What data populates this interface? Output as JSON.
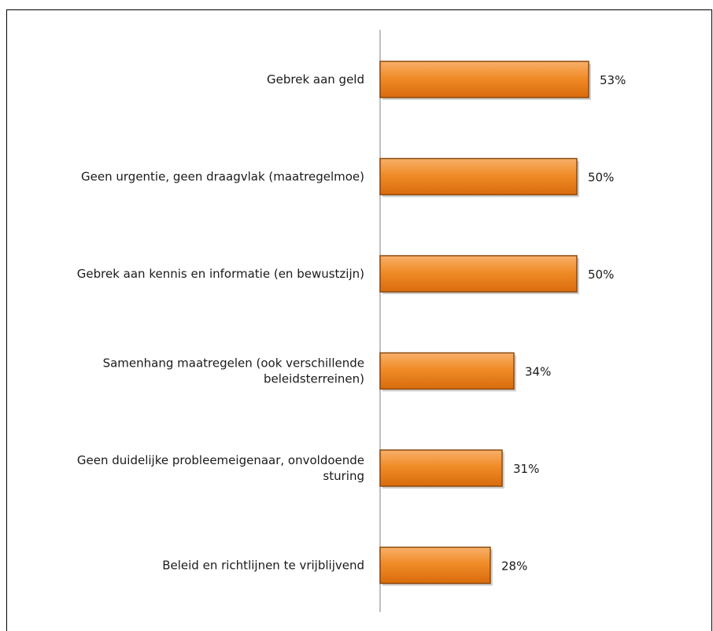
{
  "chart_data": {
    "type": "bar",
    "orientation": "horizontal",
    "categories": [
      "Gebrek aan geld",
      "Geen urgentie, geen draagvlak (maatregelmoe)",
      "Gebrek aan kennis en informatie (en bewustzijn)",
      "Samenhang maatregelen (ook verschillende beleidsterreinen)",
      "Geen duidelijke probleemeigenaar, onvoldoende sturing",
      "Beleid en richtlijnen te vrijblijvend"
    ],
    "category_lines": [
      [
        "Gebrek aan geld"
      ],
      [
        "Geen urgentie, geen draagvlak (maatregelmoe)"
      ],
      [
        "Gebrek aan kennis en informatie (en bewustzijn)"
      ],
      [
        "Samenhang maatregelen (ook verschillende",
        "beleidsterreinen)"
      ],
      [
        "Geen duidelijke probleemeigenaar, onvoldoende",
        "sturing"
      ],
      [
        "Beleid en richtlijnen te vrijblijvend"
      ]
    ],
    "values": [
      53,
      50,
      50,
      34,
      31,
      28
    ],
    "value_labels": [
      "53%",
      "50%",
      "50%",
      "34%",
      "31%",
      "28%"
    ],
    "unit": "%",
    "xlim": [
      0,
      100
    ],
    "grid": false,
    "legend": "none",
    "title": "",
    "xlabel": "",
    "ylabel": "",
    "colors": {
      "bar_fill_light": "#f8b06a",
      "bar_fill": "#f08c28",
      "bar_fill_dark": "#d96b0c",
      "bar_edge": "#8a4a10",
      "axis": "#bfbfbf",
      "text": "#1a1a1a"
    }
  }
}
